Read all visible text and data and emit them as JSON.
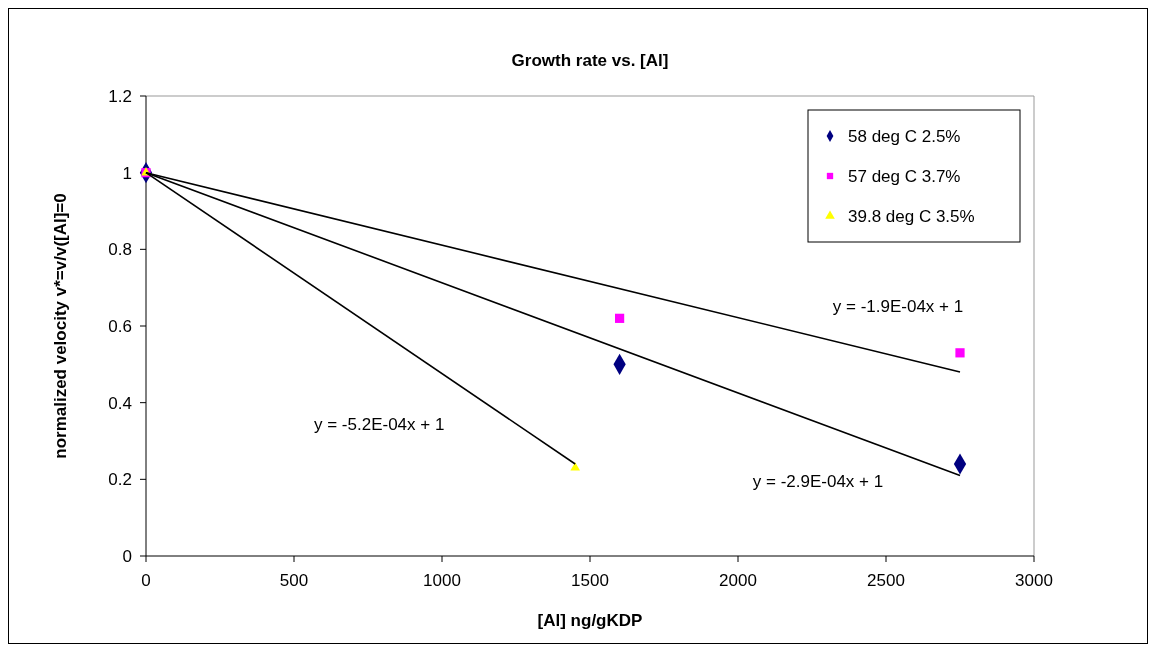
{
  "chart_data": {
    "type": "scatter",
    "title": "Growth rate vs. [Al]",
    "xlabel": "[Al] ng/gKDP",
    "ylabel": "normalized velocity v*=v/v([Al]=0",
    "xlim": [
      0,
      3000
    ],
    "xticks": [
      0,
      500,
      1000,
      1500,
      2000,
      2500,
      3000
    ],
    "ylim": [
      0,
      1.2
    ],
    "yticks": [
      0,
      0.2,
      0.4,
      0.6,
      0.8,
      1,
      1.2
    ],
    "grid": false,
    "legend": "top right",
    "series": [
      {
        "name": "58 deg C 2.5%",
        "color": "#000080",
        "marker": "diamond",
        "x": [
          0,
          1600,
          2750
        ],
        "values": [
          1,
          0.5,
          0.24
        ]
      },
      {
        "name": "57 deg C 3.7%",
        "color": "#ff00ff",
        "marker": "square",
        "x": [
          0,
          1600,
          2750
        ],
        "values": [
          1,
          0.62,
          0.53
        ]
      },
      {
        "name": "39.8 deg C 3.5%",
        "color": "#ffff00",
        "marker": "triangle",
        "x": [
          0,
          1450
        ],
        "values": [
          1,
          0.23
        ]
      },
      {
        "type": "line",
        "color": "#000000",
        "marker": "none",
        "x": [
          0,
          2750
        ],
        "values": [
          1,
          0.48
        ]
      },
      {
        "type": "line",
        "color": "#000000",
        "marker": "none",
        "x": [
          0,
          2750
        ],
        "values": [
          1,
          0.21
        ]
      },
      {
        "type": "line",
        "color": "#000000",
        "marker": "none",
        "x": [
          0,
          1450
        ],
        "values": [
          1,
          0.24
        ]
      }
    ],
    "annotations": [
      "y = -1.9E-04x + 1",
      "y = -2.9E-04x + 1",
      "y = -5.2E-04x + 1"
    ]
  }
}
